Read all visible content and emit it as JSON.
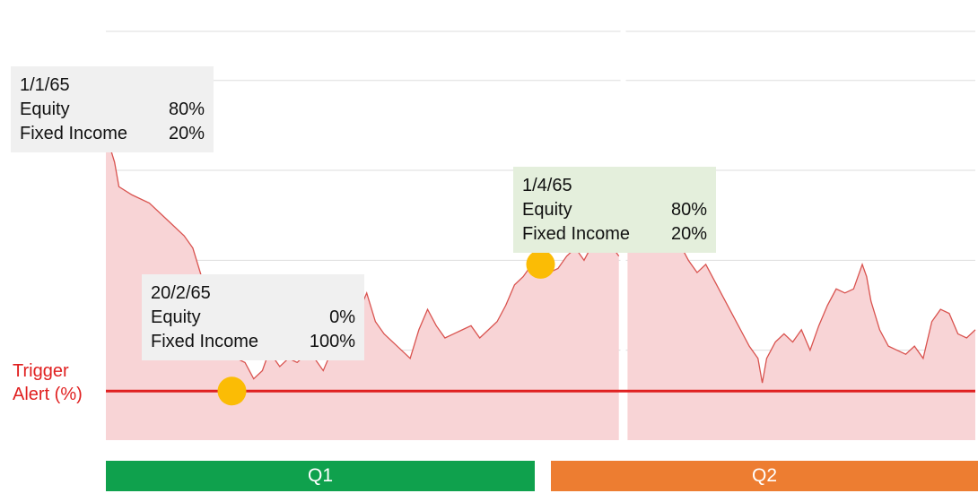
{
  "chart_data": {
    "type": "area",
    "ylim": [
      0,
      100
    ],
    "grid": true,
    "colors": {
      "fill": "#f8d4d6",
      "line": "#d9534f",
      "trigger": "#e02020",
      "marker": "#fbbc05",
      "gridline": "#dddddd",
      "divider": "#ffffff"
    },
    "trigger_line": {
      "label": "Trigger\nAlert (%)",
      "value": 12
    },
    "x_range": [
      0,
      100
    ],
    "series": [
      {
        "points": [
          [
            0,
            75
          ],
          [
            1,
            68
          ],
          [
            1.5,
            62
          ],
          [
            3,
            60
          ],
          [
            5,
            58
          ],
          [
            7,
            54
          ],
          [
            9,
            50
          ],
          [
            10,
            47
          ],
          [
            11,
            40
          ],
          [
            12,
            36
          ],
          [
            13,
            28
          ],
          [
            14,
            24
          ],
          [
            15,
            20
          ],
          [
            16,
            19
          ],
          [
            17,
            15
          ],
          [
            18,
            17
          ],
          [
            18.5,
            20
          ],
          [
            19,
            21
          ],
          [
            20,
            18
          ],
          [
            21,
            20
          ],
          [
            22,
            19
          ],
          [
            23,
            21
          ],
          [
            24,
            20
          ],
          [
            25,
            17
          ],
          [
            26,
            22
          ],
          [
            27,
            25
          ],
          [
            28,
            27
          ],
          [
            29,
            31
          ],
          [
            30,
            36
          ],
          [
            31,
            29
          ],
          [
            32,
            26
          ],
          [
            33,
            24
          ],
          [
            34,
            22
          ],
          [
            35,
            20
          ],
          [
            36,
            27
          ],
          [
            37,
            32
          ],
          [
            38,
            28
          ],
          [
            39,
            25
          ],
          [
            40,
            26
          ],
          [
            41,
            27
          ],
          [
            42,
            28
          ],
          [
            43,
            25
          ],
          [
            44,
            27
          ],
          [
            45,
            29
          ],
          [
            46,
            33
          ],
          [
            47,
            38
          ],
          [
            48,
            40
          ],
          [
            49,
            43
          ],
          [
            50,
            42
          ],
          [
            51,
            41
          ],
          [
            52,
            42
          ],
          [
            53,
            45
          ],
          [
            54,
            47
          ],
          [
            55,
            44
          ],
          [
            56,
            48
          ],
          [
            57,
            47
          ],
          [
            58,
            48
          ],
          [
            59,
            45
          ]
        ]
      },
      {
        "points": [
          [
            60,
            47
          ],
          [
            61,
            52
          ],
          [
            62,
            56
          ],
          [
            63,
            58
          ],
          [
            64,
            56
          ],
          [
            65,
            52
          ],
          [
            66,
            48
          ],
          [
            67,
            44
          ],
          [
            68,
            41
          ],
          [
            69,
            43
          ],
          [
            70,
            39
          ],
          [
            71,
            35
          ],
          [
            72,
            31
          ],
          [
            73,
            27
          ],
          [
            74,
            23
          ],
          [
            75,
            20
          ],
          [
            75.5,
            14
          ],
          [
            76,
            20
          ],
          [
            77,
            24
          ],
          [
            78,
            26
          ],
          [
            79,
            24
          ],
          [
            80,
            27
          ],
          [
            81,
            22
          ],
          [
            82,
            28
          ],
          [
            83,
            33
          ],
          [
            84,
            37
          ],
          [
            85,
            36
          ],
          [
            86,
            37
          ],
          [
            87,
            43
          ],
          [
            87.5,
            40
          ],
          [
            88,
            34
          ],
          [
            89,
            27
          ],
          [
            90,
            23
          ],
          [
            91,
            22
          ],
          [
            92,
            21
          ],
          [
            93,
            23
          ],
          [
            94,
            20
          ],
          [
            95,
            29
          ],
          [
            96,
            32
          ],
          [
            97,
            31
          ],
          [
            98,
            26
          ],
          [
            99,
            25
          ],
          [
            100,
            27
          ]
        ]
      }
    ],
    "annotations": [
      {
        "date": "1/1/65",
        "lines": [
          {
            "label": "Equity",
            "value": "80%"
          },
          {
            "label": "Fixed Income",
            "value": "20%"
          }
        ],
        "style": "grey",
        "marker": [
          0,
          75
        ]
      },
      {
        "date": "20/2/65",
        "lines": [
          {
            "label": "Equity",
            "value": "0%"
          },
          {
            "label": "Fixed Income",
            "value": "100%"
          }
        ],
        "style": "grey",
        "marker": [
          14.5,
          12
        ]
      },
      {
        "date": "1/4/65",
        "lines": [
          {
            "label": "Equity",
            "value": "80%"
          },
          {
            "label": "Fixed Income",
            "value": "20%"
          }
        ],
        "style": "green",
        "marker": [
          50,
          43
        ]
      }
    ],
    "periods": [
      {
        "label": "Q1",
        "color": "#0fa14d"
      },
      {
        "label": "Q2",
        "color": "#ed7d31"
      }
    ]
  }
}
